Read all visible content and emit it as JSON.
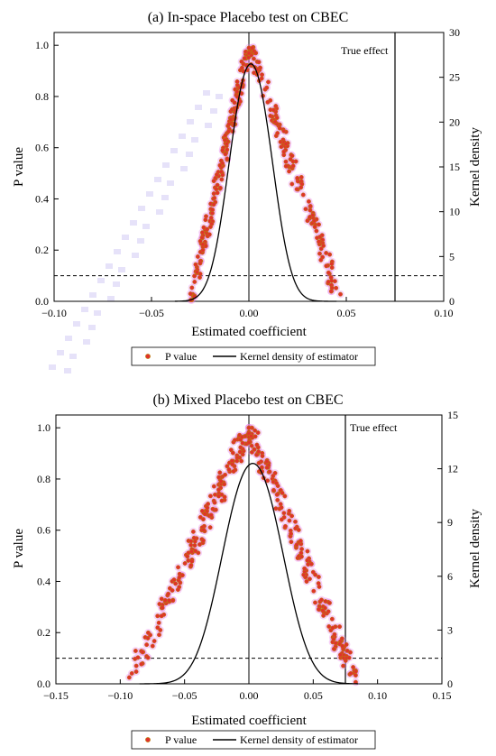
{
  "chart_data": [
    {
      "type": "scatter",
      "title": "(a) In-space Placebo test on CBEC",
      "xlabel": "Estimated coefficient",
      "ylabel": "P value",
      "y2label": "Kernel density",
      "xlim": [
        -0.1,
        0.1
      ],
      "ylim": [
        0,
        1.05
      ],
      "y2lim": [
        0,
        30
      ],
      "xticks": [
        "−0.10",
        "−0.05",
        "0.00",
        "0.05",
        "0.10"
      ],
      "xtick_values": [
        -0.1,
        -0.05,
        0.0,
        0.05,
        0.1
      ],
      "yticks": [
        "0.0",
        "0.2",
        "0.4",
        "0.6",
        "0.8",
        "1.0"
      ],
      "ytick_values": [
        0,
        0.2,
        0.4,
        0.6,
        0.8,
        1.0
      ],
      "y2ticks": [
        "0",
        "5",
        "10",
        "15",
        "20",
        "25",
        "30"
      ],
      "y2tick_values": [
        0,
        5,
        10,
        15,
        20,
        25,
        30
      ],
      "true_effect": {
        "label": "True effect",
        "x": 0.075
      },
      "reference_line_y": 0.1,
      "zero_line_x": 0.0,
      "scatter_spread": {
        "left": 0.03,
        "right": 0.047,
        "peak_x": 0.0,
        "n_points": 320
      },
      "kde": {
        "peak_x": 0.001,
        "peak_density": 26.5,
        "sd": 0.0115,
        "range": [
          -0.038,
          0.045
        ]
      },
      "grid": false,
      "legend": {
        "position": "bottom",
        "items": [
          "P value",
          "Kernel density of estimator"
        ]
      },
      "colors": {
        "points": "#e0322a",
        "point_edge": "#b8860b",
        "halo": "#e87ce8",
        "line": "#000000"
      }
    },
    {
      "type": "scatter",
      "title": "(b) Mixed Placebo test on CBEC",
      "xlabel": "Estimated coefficient",
      "ylabel": "P value",
      "y2label": "Kernel density",
      "xlim": [
        -0.15,
        0.15
      ],
      "ylim": [
        0,
        1.05
      ],
      "y2lim": [
        0,
        15
      ],
      "xticks": [
        "−0.15",
        "−0.10",
        "−0.05",
        "0.00",
        "0.05",
        "0.10",
        "0.15"
      ],
      "xtick_values": [
        -0.15,
        -0.1,
        -0.05,
        0.0,
        0.05,
        0.1,
        0.15
      ],
      "yticks": [
        "0.0",
        "0.2",
        "0.4",
        "0.6",
        "0.8",
        "1.0"
      ],
      "ytick_values": [
        0,
        0.2,
        0.4,
        0.6,
        0.8,
        1.0
      ],
      "y2ticks": [
        "0",
        "3",
        "6",
        "9",
        "12",
        "15"
      ],
      "y2tick_values": [
        0,
        3,
        6,
        9,
        12,
        15
      ],
      "true_effect": {
        "label": "True effect",
        "x": 0.075
      },
      "reference_line_y": 0.1,
      "zero_line_x": 0.0,
      "scatter_spread": {
        "left": 0.093,
        "right": 0.083,
        "peak_x": 0.0,
        "n_points": 360
      },
      "kde": {
        "peak_x": 0.003,
        "peak_density": 12.3,
        "sd": 0.0245,
        "range": [
          -0.085,
          0.085
        ]
      },
      "grid": false,
      "legend": {
        "position": "bottom",
        "items": [
          "P value",
          "Kernel density of estimator"
        ]
      },
      "colors": {
        "points": "#e0322a",
        "point_edge": "#b8860b",
        "halo": "#e87ce8",
        "line": "#000000"
      }
    }
  ]
}
